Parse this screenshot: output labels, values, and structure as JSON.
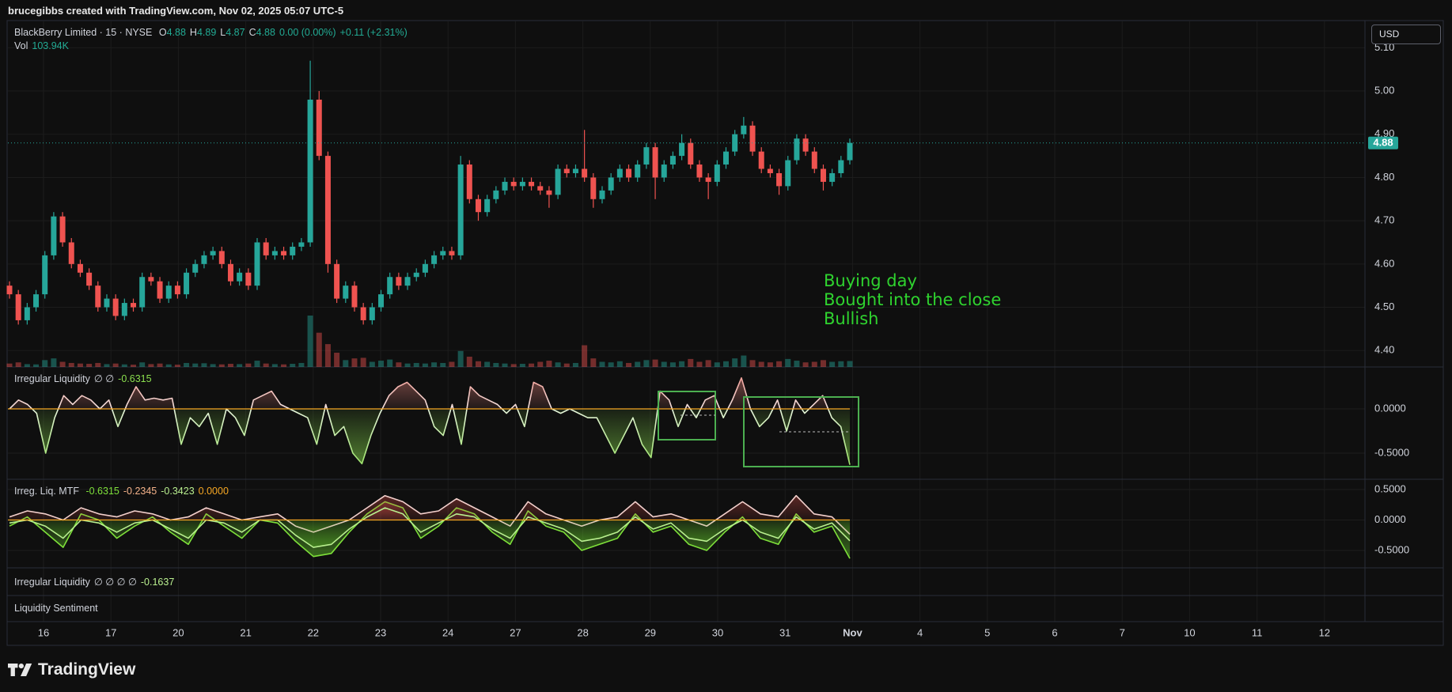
{
  "header": {
    "title": "brucegibbs created with TradingView.com, Nov 02, 2025 05:07 UTC-5",
    "currency": "USD"
  },
  "chart_data": [
    {
      "type": "candlestick",
      "symbol": "BlackBerry Limited · 15 · NYSE",
      "legend": [
        {
          "key": "O",
          "value": "4.88"
        },
        {
          "key": "H",
          "value": "4.89"
        },
        {
          "key": "L",
          "value": "4.87"
        },
        {
          "key": "C",
          "value": "4.88"
        }
      ],
      "change": "0.00 (0.00%)",
      "change_since": "+0.11 (+2.31%)",
      "volume_label": "Vol",
      "volume_value": "103.94K",
      "up_color": "#26a69a",
      "down_color": "#ef5350",
      "grid": true,
      "ylim": [
        4.362,
        5.161
      ],
      "yticks": [
        {
          "value": 4.4,
          "label": "4.40"
        },
        {
          "value": 4.5,
          "label": "4.50"
        },
        {
          "value": 4.6,
          "label": "4.60"
        },
        {
          "value": 4.7,
          "label": "4.70"
        },
        {
          "value": 4.8,
          "label": "4.80"
        },
        {
          "value": 4.9,
          "label": "4.90"
        },
        {
          "value": 5.0,
          "label": "5.00"
        },
        {
          "value": 5.1,
          "label": "5.10"
        }
      ],
      "last_price": 4.88,
      "annotations": [
        "Buying day",
        "Bought into the close",
        "Bullish"
      ],
      "annotation_color": "#2fd32f",
      "ohlc": [
        [
          4.55,
          4.56,
          4.52,
          4.53
        ],
        [
          4.53,
          4.54,
          4.46,
          4.47
        ],
        [
          4.47,
          4.51,
          4.46,
          4.5
        ],
        [
          4.5,
          4.54,
          4.49,
          4.53
        ],
        [
          4.53,
          4.63,
          4.52,
          4.62
        ],
        [
          4.62,
          4.72,
          4.61,
          4.71
        ],
        [
          4.71,
          4.72,
          4.64,
          4.65
        ],
        [
          4.65,
          4.66,
          4.59,
          4.6
        ],
        [
          4.6,
          4.61,
          4.57,
          4.58
        ],
        [
          4.58,
          4.59,
          4.54,
          4.55
        ],
        [
          4.55,
          4.56,
          4.49,
          4.5
        ],
        [
          4.5,
          4.53,
          4.49,
          4.52
        ],
        [
          4.52,
          4.53,
          4.47,
          4.48
        ],
        [
          4.48,
          4.52,
          4.47,
          4.51
        ],
        [
          4.51,
          4.52,
          4.49,
          4.5
        ],
        [
          4.5,
          4.58,
          4.49,
          4.57
        ],
        [
          4.57,
          4.58,
          4.55,
          4.56
        ],
        [
          4.56,
          4.57,
          4.51,
          4.52
        ],
        [
          4.52,
          4.56,
          4.51,
          4.55
        ],
        [
          4.55,
          4.56,
          4.52,
          4.53
        ],
        [
          4.53,
          4.59,
          4.52,
          4.58
        ],
        [
          4.58,
          4.61,
          4.57,
          4.6
        ],
        [
          4.6,
          4.63,
          4.59,
          4.62
        ],
        [
          4.62,
          4.64,
          4.61,
          4.63
        ],
        [
          4.63,
          4.64,
          4.59,
          4.6
        ],
        [
          4.6,
          4.61,
          4.55,
          4.56
        ],
        [
          4.56,
          4.59,
          4.55,
          4.58
        ],
        [
          4.58,
          4.59,
          4.54,
          4.55
        ],
        [
          4.55,
          4.66,
          4.54,
          4.65
        ],
        [
          4.65,
          4.66,
          4.61,
          4.62
        ],
        [
          4.62,
          4.64,
          4.61,
          4.63
        ],
        [
          4.63,
          4.64,
          4.61,
          4.62
        ],
        [
          4.62,
          4.65,
          4.61,
          4.64
        ],
        [
          4.64,
          4.66,
          4.63,
          4.65
        ],
        [
          4.65,
          5.07,
          4.64,
          4.98
        ],
        [
          4.98,
          5.0,
          4.84,
          4.85
        ],
        [
          4.85,
          4.86,
          4.58,
          4.6
        ],
        [
          4.6,
          4.61,
          4.51,
          4.52
        ],
        [
          4.52,
          4.56,
          4.51,
          4.55
        ],
        [
          4.55,
          4.56,
          4.49,
          4.5
        ],
        [
          4.5,
          4.51,
          4.46,
          4.47
        ],
        [
          4.47,
          4.51,
          4.46,
          4.5
        ],
        [
          4.5,
          4.54,
          4.49,
          4.53
        ],
        [
          4.53,
          4.58,
          4.52,
          4.57
        ],
        [
          4.57,
          4.58,
          4.54,
          4.55
        ],
        [
          4.55,
          4.58,
          4.54,
          4.57
        ],
        [
          4.57,
          4.59,
          4.56,
          4.58
        ],
        [
          4.58,
          4.61,
          4.57,
          4.6
        ],
        [
          4.6,
          4.63,
          4.59,
          4.62
        ],
        [
          4.62,
          4.64,
          4.61,
          4.63
        ],
        [
          4.63,
          4.64,
          4.61,
          4.62
        ],
        [
          4.62,
          4.85,
          4.61,
          4.83
        ],
        [
          4.83,
          4.84,
          4.74,
          4.75
        ],
        [
          4.75,
          4.76,
          4.7,
          4.72
        ],
        [
          4.72,
          4.76,
          4.71,
          4.75
        ],
        [
          4.75,
          4.78,
          4.74,
          4.77
        ],
        [
          4.77,
          4.8,
          4.76,
          4.79
        ],
        [
          4.79,
          4.8,
          4.77,
          4.78
        ],
        [
          4.78,
          4.8,
          4.77,
          4.79
        ],
        [
          4.79,
          4.8,
          4.77,
          4.78
        ],
        [
          4.78,
          4.79,
          4.76,
          4.77
        ],
        [
          4.77,
          4.78,
          4.73,
          4.76
        ],
        [
          4.76,
          4.83,
          4.75,
          4.82
        ],
        [
          4.82,
          4.83,
          4.8,
          4.81
        ],
        [
          4.81,
          4.83,
          4.8,
          4.82
        ],
        [
          4.82,
          4.91,
          4.79,
          4.8
        ],
        [
          4.8,
          4.81,
          4.73,
          4.75
        ],
        [
          4.75,
          4.78,
          4.74,
          4.77
        ],
        [
          4.77,
          4.81,
          4.76,
          4.8
        ],
        [
          4.8,
          4.83,
          4.79,
          4.82
        ],
        [
          4.82,
          4.83,
          4.79,
          4.8
        ],
        [
          4.8,
          4.84,
          4.79,
          4.83
        ],
        [
          4.83,
          4.88,
          4.82,
          4.87
        ],
        [
          4.87,
          4.88,
          4.75,
          4.8
        ],
        [
          4.8,
          4.84,
          4.79,
          4.83
        ],
        [
          4.83,
          4.86,
          4.82,
          4.85
        ],
        [
          4.85,
          4.9,
          4.84,
          4.88
        ],
        [
          4.88,
          4.89,
          4.82,
          4.83
        ],
        [
          4.83,
          4.84,
          4.79,
          4.8
        ],
        [
          4.8,
          4.81,
          4.75,
          4.79
        ],
        [
          4.79,
          4.84,
          4.78,
          4.83
        ],
        [
          4.83,
          4.87,
          4.82,
          4.86
        ],
        [
          4.86,
          4.91,
          4.85,
          4.9
        ],
        [
          4.9,
          4.94,
          4.89,
          4.92
        ],
        [
          4.92,
          4.93,
          4.85,
          4.86
        ],
        [
          4.86,
          4.87,
          4.81,
          4.82
        ],
        [
          4.82,
          4.83,
          4.8,
          4.81
        ],
        [
          4.81,
          4.82,
          4.76,
          4.78
        ],
        [
          4.78,
          4.85,
          4.77,
          4.84
        ],
        [
          4.84,
          4.9,
          4.83,
          4.89
        ],
        [
          4.89,
          4.9,
          4.85,
          4.86
        ],
        [
          4.86,
          4.87,
          4.81,
          4.82
        ],
        [
          4.82,
          4.83,
          4.77,
          4.79
        ],
        [
          4.79,
          4.82,
          4.78,
          4.81
        ],
        [
          4.81,
          4.85,
          4.8,
          4.84
        ],
        [
          4.84,
          4.89,
          4.83,
          4.88
        ]
      ],
      "volume": [
        60,
        80,
        50,
        45,
        120,
        150,
        90,
        70,
        60,
        55,
        70,
        50,
        60,
        45,
        40,
        80,
        50,
        60,
        45,
        40,
        70,
        60,
        65,
        50,
        45,
        55,
        50,
        60,
        110,
        60,
        50,
        45,
        55,
        70,
        900,
        600,
        400,
        250,
        120,
        150,
        160,
        90,
        110,
        130,
        80,
        60,
        70,
        60,
        80,
        70,
        90,
        280,
        180,
        100,
        90,
        70,
        60,
        50,
        55,
        60,
        90,
        110,
        80,
        60,
        70,
        380,
        150,
        90,
        80,
        100,
        70,
        90,
        120,
        130,
        90,
        80,
        100,
        140,
        90,
        120,
        80,
        100,
        150,
        200,
        120,
        90,
        80,
        100,
        140,
        110,
        80,
        90,
        120,
        90,
        100,
        103.94
      ]
    },
    {
      "type": "area",
      "title": "Irregular Liquidity",
      "params": "∅ ∅",
      "value_label": "-0.6315",
      "value_color": "#8be04e",
      "up_color": "#f28b82",
      "down_color": "#8be04e",
      "zero_color": "#f5a623",
      "ylim": [
        -0.795,
        0.473
      ],
      "yticks": [
        {
          "value": 0,
          "label": "0.0000"
        },
        {
          "value": -0.5,
          "label": "-0.5000"
        }
      ],
      "values": [
        0.0,
        0.1,
        0.05,
        -0.05,
        -0.5,
        -0.1,
        0.15,
        0.05,
        0.15,
        0.1,
        0.0,
        0.1,
        -0.2,
        0.05,
        0.25,
        0.1,
        0.12,
        0.1,
        0.12,
        -0.4,
        -0.1,
        -0.2,
        -0.05,
        -0.4,
        0.0,
        -0.1,
        -0.3,
        0.1,
        0.15,
        0.2,
        0.05,
        0.0,
        -0.05,
        -0.1,
        -0.4,
        0.05,
        -0.3,
        -0.2,
        -0.5,
        -0.62,
        -0.3,
        -0.05,
        0.15,
        0.25,
        0.3,
        0.2,
        0.1,
        -0.2,
        -0.3,
        0.05,
        -0.4,
        0.25,
        0.15,
        0.1,
        0.05,
        -0.05,
        0.05,
        -0.2,
        0.3,
        0.25,
        0.0,
        -0.05,
        0.0,
        -0.05,
        -0.1,
        -0.1,
        -0.3,
        -0.5,
        -0.3,
        -0.1,
        -0.4,
        -0.55,
        0.2,
        0.1,
        -0.2,
        0.05,
        -0.1,
        0.1,
        0.15,
        -0.1,
        0.1,
        0.35,
        0.0,
        -0.2,
        -0.1,
        0.1,
        -0.25,
        0.1,
        -0.05,
        0.05,
        0.15,
        -0.1,
        -0.2,
        -0.6315
      ]
    },
    {
      "type": "multi_area",
      "title": "Irreg. Liq. MTF",
      "legend_values": [
        {
          "text": "-0.6315",
          "color": "#7ee03a"
        },
        {
          "text": "-0.2345",
          "color": "#f4b28a"
        },
        {
          "text": "-0.3423",
          "color": "#b9ef8f"
        },
        {
          "text": "0.0000",
          "color": "#f5a623"
        }
      ],
      "up_color": "#e5534b",
      "down_color": "#5fbf2a",
      "zero_color": "#f5a623",
      "ylim": [
        -0.786,
        0.669
      ],
      "yticks": [
        {
          "value": 0.5,
          "label": "0.5000"
        },
        {
          "value": 0,
          "label": "0.0000"
        },
        {
          "value": -0.5,
          "label": "-0.5000"
        }
      ],
      "series": [
        {
          "color": "#7ee03a",
          "values": [
            -0.1,
            0.05,
            -0.2,
            -0.45,
            0.1,
            0.0,
            -0.3,
            -0.1,
            0.05,
            -0.2,
            -0.4,
            0.1,
            -0.1,
            -0.3,
            0.0,
            -0.05,
            -0.35,
            -0.6,
            -0.55,
            -0.2,
            0.1,
            0.3,
            0.2,
            -0.3,
            -0.1,
            0.2,
            0.1,
            -0.2,
            -0.4,
            0.15,
            -0.1,
            -0.2,
            -0.5,
            -0.4,
            -0.3,
            0.1,
            -0.2,
            -0.1,
            -0.4,
            -0.5,
            -0.2,
            0.05,
            -0.3,
            -0.4,
            0.1,
            -0.2,
            -0.1,
            -0.6315
          ]
        },
        {
          "color": "#f3d0cc",
          "values": [
            0.05,
            0.15,
            0.1,
            0.0,
            0.2,
            0.1,
            0.05,
            0.15,
            0.1,
            0.0,
            0.05,
            0.2,
            0.1,
            0.0,
            0.05,
            0.1,
            -0.1,
            -0.2,
            -0.1,
            0.0,
            0.2,
            0.4,
            0.3,
            0.1,
            0.15,
            0.35,
            0.2,
            0.05,
            -0.1,
            0.3,
            0.1,
            0.0,
            -0.1,
            0.0,
            0.05,
            0.3,
            0.05,
            0.1,
            0.0,
            -0.1,
            0.1,
            0.3,
            0.1,
            0.05,
            0.4,
            0.1,
            0.05,
            -0.2345
          ]
        },
        {
          "color": "#b9ef8f",
          "values": [
            -0.05,
            0.0,
            -0.1,
            -0.3,
            0.0,
            -0.05,
            -0.2,
            -0.05,
            0.0,
            -0.15,
            -0.3,
            0.0,
            -0.05,
            -0.2,
            0.0,
            0.0,
            -0.25,
            -0.45,
            -0.4,
            -0.15,
            0.05,
            0.2,
            0.1,
            -0.2,
            -0.05,
            0.1,
            0.05,
            -0.15,
            -0.3,
            0.05,
            -0.05,
            -0.15,
            -0.35,
            -0.3,
            -0.2,
            0.05,
            -0.15,
            -0.05,
            -0.3,
            -0.35,
            -0.15,
            0.0,
            -0.2,
            -0.3,
            0.05,
            -0.15,
            -0.05,
            -0.3423
          ]
        }
      ]
    },
    {
      "type": "empty",
      "title": "Irregular Liquidity",
      "params": "∅ ∅ ∅ ∅",
      "value_label": "-0.1637",
      "value_color": "#b9ef8f"
    },
    {
      "type": "empty",
      "title": "Liquidity Sentiment"
    }
  ],
  "time_axis": {
    "ticks": [
      "16",
      "17",
      "20",
      "21",
      "22",
      "23",
      "24",
      "27",
      "28",
      "29",
      "30",
      "31",
      "Nov",
      "4",
      "5",
      "6",
      "7",
      "10",
      "11",
      "12"
    ]
  },
  "footer": {
    "brand": "TradingView"
  }
}
